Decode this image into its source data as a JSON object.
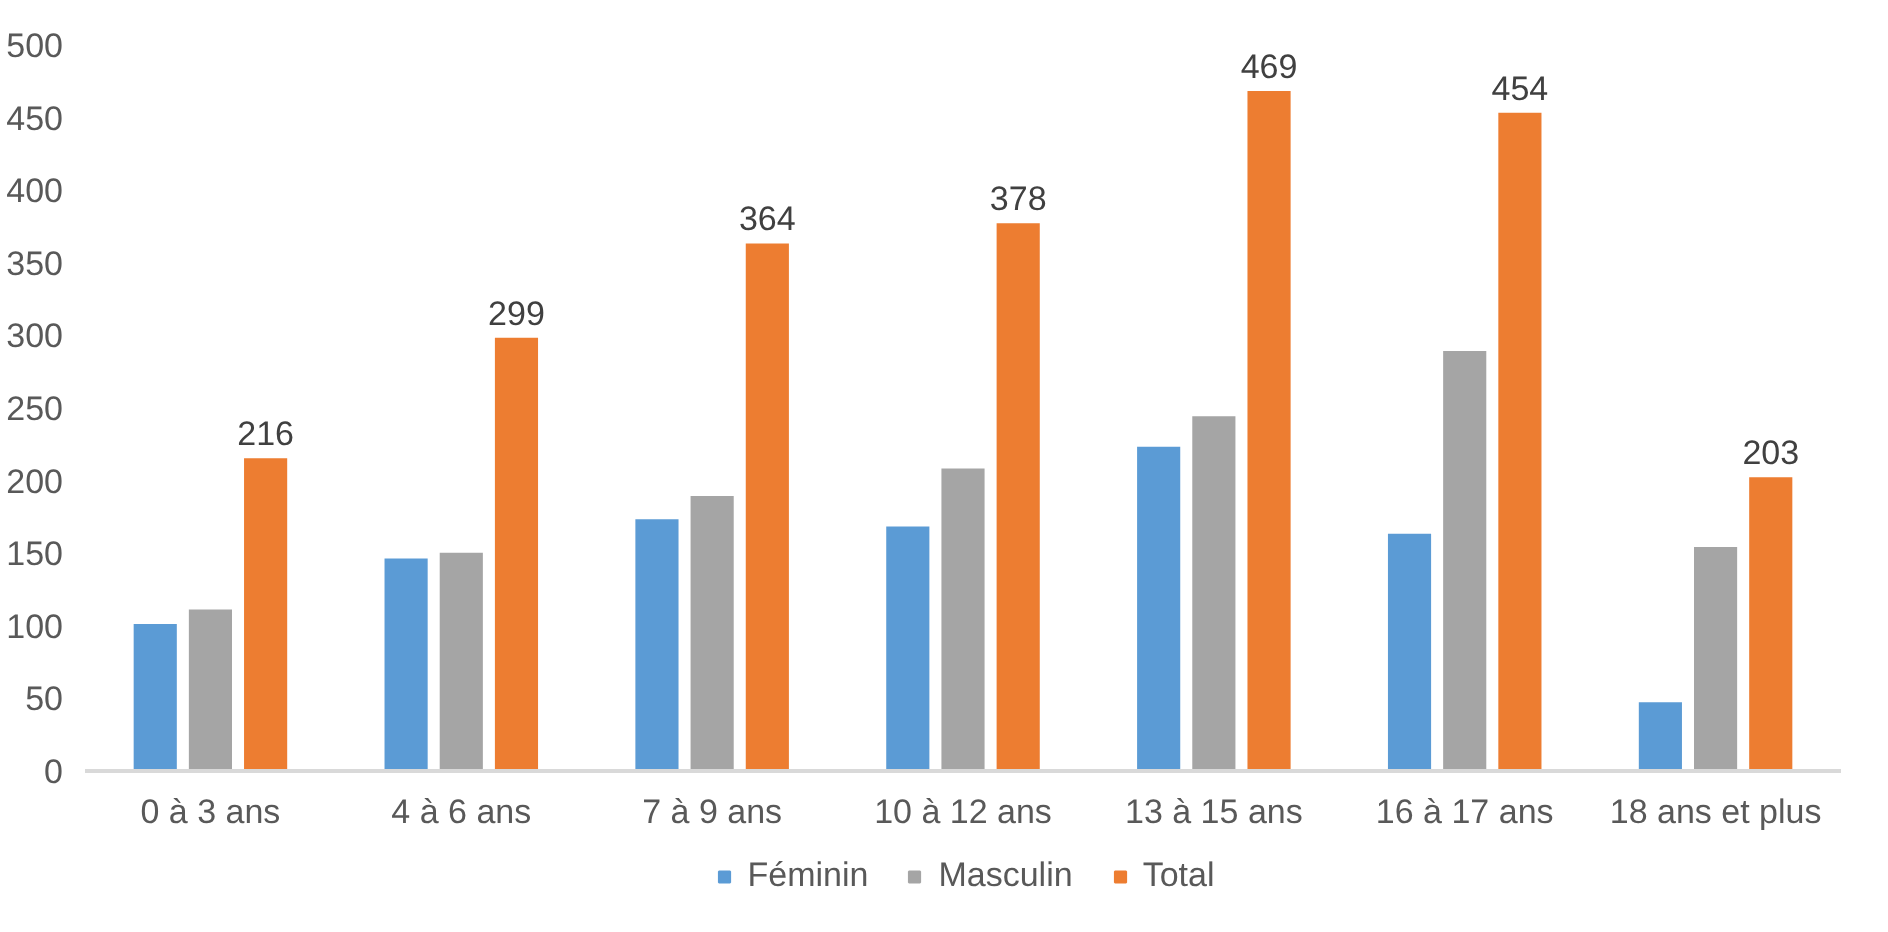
{
  "chart_data": {
    "type": "bar",
    "categories": [
      "0 à 3 ans",
      "4 à 6 ans",
      "7 à 9 ans",
      "10 à 12 ans",
      "13 à 15 ans",
      "16 à 17 ans",
      "18 ans et plus"
    ],
    "series": [
      {
        "name": "Féminin",
        "color": "#5b9bd5",
        "values": [
          102,
          147,
          174,
          169,
          224,
          164,
          48
        ]
      },
      {
        "name": "Masculin",
        "color": "#a5a5a5",
        "values": [
          112,
          151,
          190,
          209,
          245,
          290,
          155
        ]
      },
      {
        "name": "Total",
        "color": "#ed7d31",
        "values": [
          216,
          299,
          364,
          378,
          469,
          454,
          203
        ],
        "value_labels": [
          "216",
          "299",
          "364",
          "378",
          "469",
          "454",
          "203"
        ]
      }
    ],
    "ylim": [
      0,
      500
    ],
    "yticks": [
      0,
      50,
      100,
      150,
      200,
      250,
      300,
      350,
      400,
      450,
      500
    ],
    "grid": false,
    "legend": "bottom"
  }
}
